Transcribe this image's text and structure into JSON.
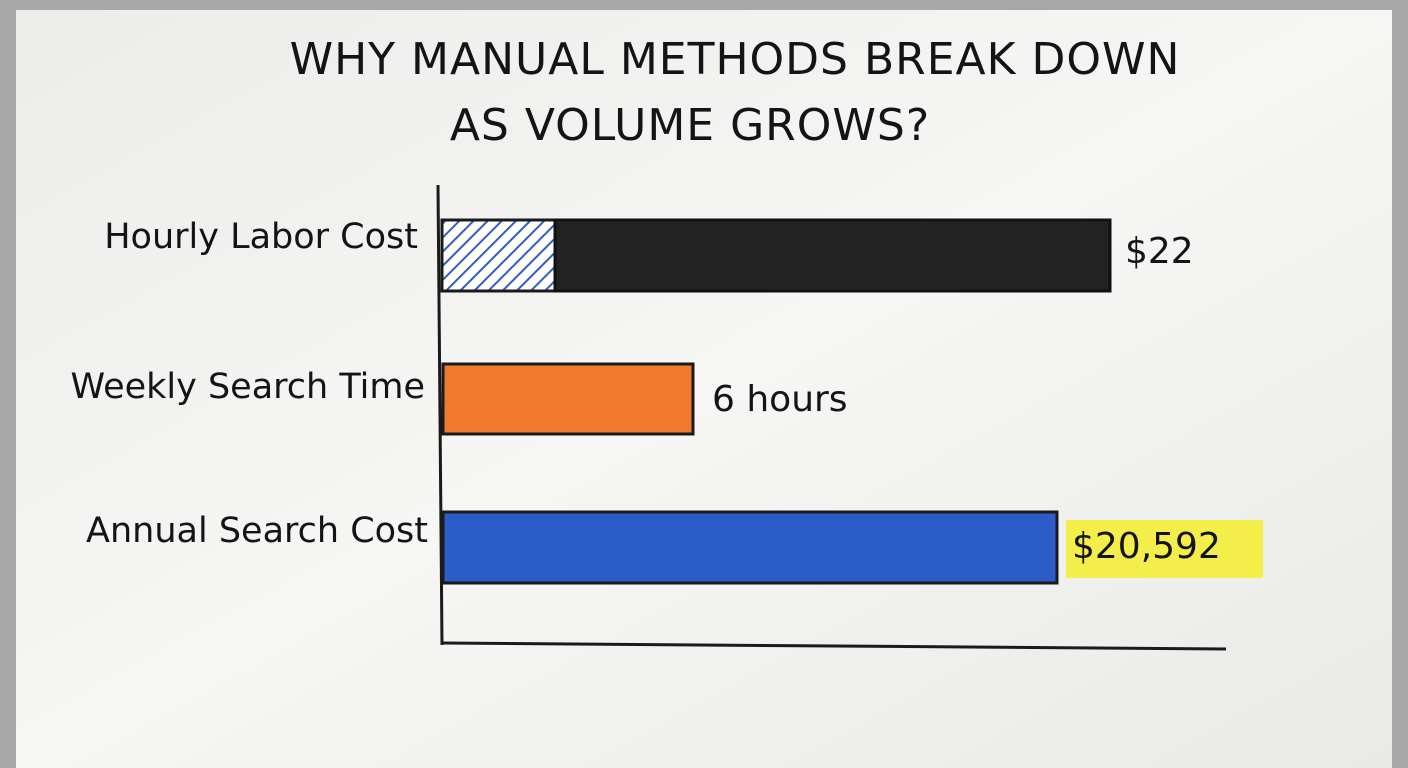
{
  "title": {
    "lines": [
      "WHY MANUAL METHODS BREAK DOWN",
      "AS VOLUME GROWS?"
    ]
  },
  "rows": [
    {
      "label": "Hourly Labor Cost",
      "value": "$22"
    },
    {
      "label": "Weekly Search Time",
      "value": "6 hours"
    },
    {
      "label": "Annual Search Cost",
      "value": "$20,592"
    }
  ]
}
